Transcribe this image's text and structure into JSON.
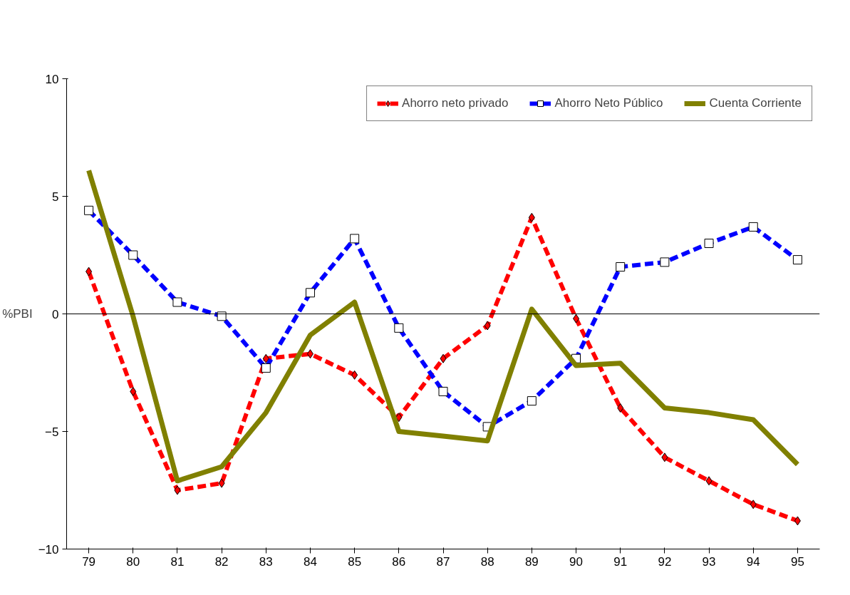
{
  "chart_data": {
    "type": "line",
    "ylabel": "%PBI",
    "categories": [
      "79",
      "80",
      "81",
      "82",
      "83",
      "84",
      "85",
      "86",
      "87",
      "88",
      "89",
      "90",
      "91",
      "92",
      "93",
      "94",
      "95"
    ],
    "series": [
      {
        "name": "Ahorro neto privado",
        "color": "#ff0000",
        "marker": "diamond",
        "line_style": "dashed",
        "values": [
          1.8,
          -3.3,
          -7.5,
          -7.2,
          -1.9,
          -1.7,
          -2.6,
          -4.4,
          -1.9,
          -0.5,
          4.1,
          -0.2,
          -4.0,
          -6.1,
          -7.1,
          -8.1,
          -8.8
        ]
      },
      {
        "name": "Ahorro Neto Público",
        "color": "#0000ff",
        "marker": "square",
        "line_style": "dashed",
        "values": [
          4.4,
          2.5,
          0.5,
          -0.1,
          -2.3,
          0.9,
          3.2,
          -0.6,
          -3.3,
          -4.8,
          -3.7,
          -1.9,
          2.0,
          2.2,
          3.0,
          3.7,
          2.3
        ]
      },
      {
        "name": "Cuenta Corriente",
        "color": "#808000",
        "marker": "none",
        "line_style": "solid",
        "values": [
          6.1,
          -0.1,
          -7.1,
          -6.5,
          -4.2,
          -0.9,
          0.5,
          -5.0,
          -5.2,
          -5.4,
          0.2,
          -2.2,
          -2.1,
          -4.0,
          -4.2,
          -4.5,
          -6.4
        ]
      }
    ],
    "ylim": [
      -10,
      10
    ],
    "yticks": [
      -10,
      -5,
      0,
      5,
      10
    ],
    "ref_lines": [
      {
        "axis": "y",
        "value": 0,
        "color": "#000000"
      }
    ],
    "grid": false,
    "legend": "top right"
  }
}
